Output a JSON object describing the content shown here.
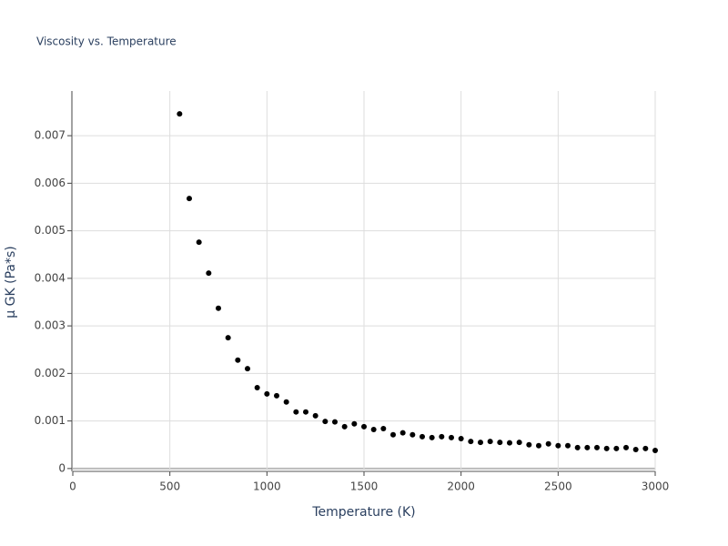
{
  "chart_data": {
    "type": "scatter",
    "title": "Viscosity vs. Temperature",
    "x_label": "Temperature (K)",
    "y_label": "μ GK (Pa*s)",
    "x": [
      550,
      600,
      650,
      700,
      750,
      800,
      850,
      900,
      950,
      1000,
      1050,
      1100,
      1150,
      1200,
      1250,
      1300,
      1350,
      1400,
      1450,
      1500,
      1550,
      1600,
      1650,
      1700,
      1750,
      1800,
      1850,
      1900,
      1950,
      2000,
      2050,
      2100,
      2150,
      2200,
      2250,
      2300,
      2350,
      2400,
      2450,
      2500,
      2550,
      2600,
      2650,
      2700,
      2750,
      2800,
      2850,
      2900,
      2950,
      3000
    ],
    "values": [
      0.00746,
      0.00568,
      0.00476,
      0.00411,
      0.00337,
      0.00275,
      0.00228,
      0.0021,
      0.0017,
      0.00157,
      0.00153,
      0.0014,
      0.00119,
      0.00119,
      0.00111,
      0.00099,
      0.00098,
      0.00088,
      0.00094,
      0.00088,
      0.00082,
      0.00084,
      0.00071,
      0.00075,
      0.00071,
      0.00067,
      0.00065,
      0.00067,
      0.00065,
      0.00063,
      0.00057,
      0.00055,
      0.00057,
      0.00055,
      0.00054,
      0.00055,
      0.0005,
      0.00048,
      0.00052,
      0.00048,
      0.00048,
      0.00044,
      0.00044,
      0.00044,
      0.00042,
      0.00042,
      0.00044,
      0.0004,
      0.00042,
      0.00038
    ],
    "color": "#000000",
    "xlim": [
      0,
      3000
    ],
    "xticks": [
      0,
      500,
      1000,
      1500,
      2000,
      2500,
      3000
    ],
    "ylim": [
      -6e-05,
      0.00794
    ],
    "yticks": [
      0,
      0.001,
      0.002,
      0.003,
      0.004,
      0.005,
      0.006,
      0.007
    ],
    "grid": true
  }
}
